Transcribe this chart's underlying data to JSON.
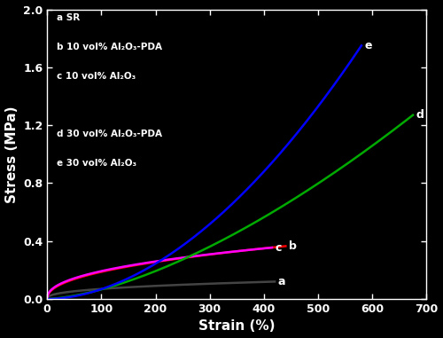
{
  "xlabel": "Strain (%)",
  "ylabel": "Stress (MPa)",
  "xlim": [
    0,
    700
  ],
  "ylim": [
    0,
    2.0
  ],
  "xticks": [
    0,
    100,
    200,
    300,
    400,
    500,
    600,
    700
  ],
  "yticks": [
    0.0,
    0.4,
    0.8,
    1.2,
    1.6,
    2.0
  ],
  "curves": [
    {
      "label": "a",
      "color": "#444444",
      "strain_end": 420,
      "stress_end": 0.12,
      "power": 0.38
    },
    {
      "label": "b",
      "color": "#ff0000",
      "strain_end": 440,
      "stress_end": 0.365,
      "power": 0.45
    },
    {
      "label": "c",
      "color": "#ff00ff",
      "strain_end": 415,
      "stress_end": 0.355,
      "power": 0.43
    },
    {
      "label": "d",
      "color": "#00aa00",
      "strain_end": 675,
      "stress_end": 1.27,
      "power": 1.55
    },
    {
      "label": "e",
      "color": "#0000ff",
      "strain_end": 580,
      "stress_end": 1.75,
      "power": 1.85
    }
  ],
  "legend_lines": [
    "a SR",
    "b 10 vol% Al₂O₃-PDA",
    "c 10 vol% Al₂O₃",
    "",
    "d 30 vol% Al₂O₃-PDA",
    "e 30 vol% Al₂O₃"
  ]
}
